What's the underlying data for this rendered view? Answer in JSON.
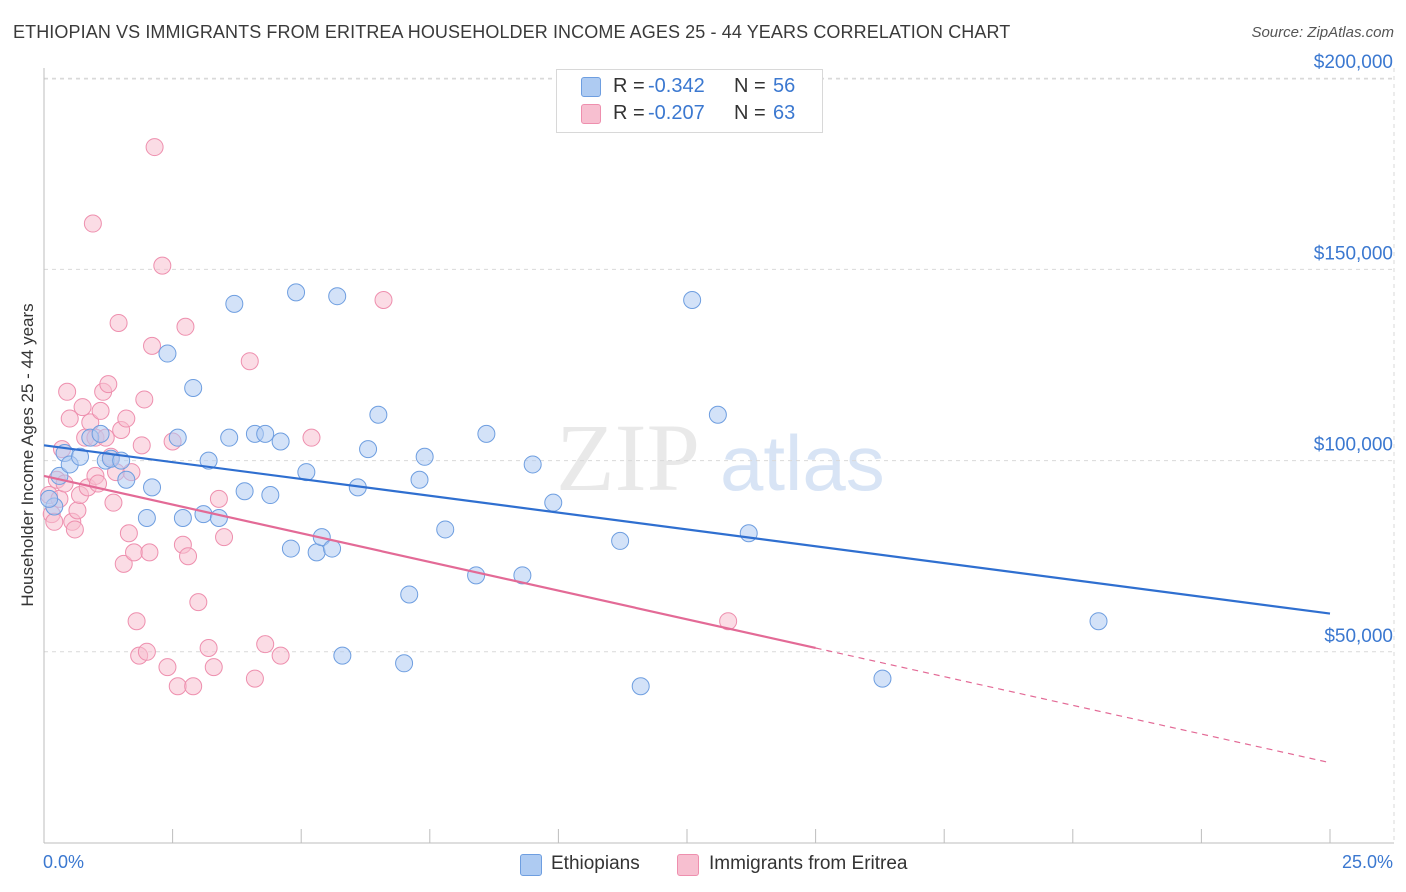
{
  "title": "ETHIOPIAN VS IMMIGRANTS FROM ERITREA HOUSEHOLDER INCOME AGES 25 - 44 YEARS CORRELATION CHART",
  "source": "Source: ZipAtlas.com",
  "watermark": {
    "zip": "ZIP",
    "atlas": "atlas"
  },
  "legend_top": {
    "rows": [
      {
        "r_label": "R =",
        "r_value": "-0.342",
        "n_label": "N =",
        "n_value": "56"
      },
      {
        "r_label": "R =",
        "r_value": "-0.207",
        "n_label": "N =",
        "n_value": "63"
      }
    ]
  },
  "legend_bottom": {
    "items": [
      "Ethiopians",
      "Immigrants from Eritrea"
    ]
  },
  "colors": {
    "blue_fill": "#aecbf2",
    "blue_stroke": "#6e9ee0",
    "blue_line": "#2f6fd0",
    "pink_fill": "#f7bfd0",
    "pink_stroke": "#ee8fae",
    "pink_line": "#e36a96",
    "tick_text": "#3b78d0",
    "grid": "#d9d9d9"
  },
  "chart_data": {
    "type": "scatter",
    "title": "ETHIOPIAN VS IMMIGRANTS FROM ERITREA HOUSEHOLDER INCOME AGES 25 - 44 YEARS CORRELATION CHART",
    "xlabel": "",
    "ylabel": "Householder Income Ages 25 - 44 years",
    "x_unit": "%",
    "xlim": [
      0,
      25
    ],
    "ylim": [
      0,
      210000
    ],
    "x_tick_labels": [
      "0.0%",
      "25.0%"
    ],
    "y_ticks": [
      50000,
      100000,
      150000,
      200000
    ],
    "y_tick_labels": [
      "$50,000",
      "$100,000",
      "$150,000",
      "$200,000"
    ],
    "grid": true,
    "legend_position": "top-center",
    "series": [
      {
        "name": "Ethiopians",
        "R": -0.342,
        "N": 56,
        "trend": {
          "x0": 0.0,
          "y0": 104000,
          "x1": 25.0,
          "y1": 60000,
          "solid_to": 25.0
        },
        "points": [
          [
            0.3,
            96000
          ],
          [
            0.4,
            102000
          ],
          [
            0.5,
            99000
          ],
          [
            0.7,
            101000
          ],
          [
            0.9,
            106000
          ],
          [
            1.1,
            107000
          ],
          [
            1.2,
            100000
          ],
          [
            1.3,
            100500
          ],
          [
            1.5,
            100000
          ],
          [
            1.6,
            95000
          ],
          [
            2.0,
            85000
          ],
          [
            2.1,
            93000
          ],
          [
            2.4,
            128000
          ],
          [
            2.6,
            106000
          ],
          [
            2.7,
            85000
          ],
          [
            2.9,
            119000
          ],
          [
            3.1,
            86000
          ],
          [
            3.2,
            100000
          ],
          [
            3.4,
            85000
          ],
          [
            3.6,
            106000
          ],
          [
            3.7,
            141000
          ],
          [
            3.9,
            92000
          ],
          [
            4.1,
            107000
          ],
          [
            4.3,
            107000
          ],
          [
            4.4,
            91000
          ],
          [
            4.6,
            105000
          ],
          [
            4.8,
            77000
          ],
          [
            4.9,
            144000
          ],
          [
            5.1,
            97000
          ],
          [
            5.3,
            76000
          ],
          [
            5.4,
            80000
          ],
          [
            5.6,
            77000
          ],
          [
            5.7,
            143000
          ],
          [
            5.8,
            49000
          ],
          [
            6.1,
            93000
          ],
          [
            6.3,
            103000
          ],
          [
            6.5,
            112000
          ],
          [
            7.0,
            47000
          ],
          [
            7.1,
            65000
          ],
          [
            7.3,
            95000
          ],
          [
            7.4,
            101000
          ],
          [
            7.8,
            82000
          ],
          [
            8.4,
            70000
          ],
          [
            8.6,
            107000
          ],
          [
            9.3,
            70000
          ],
          [
            9.5,
            99000
          ],
          [
            9.9,
            89000
          ],
          [
            11.2,
            79000
          ],
          [
            11.6,
            41000
          ],
          [
            12.6,
            142000
          ],
          [
            13.1,
            112000
          ],
          [
            13.7,
            81000
          ],
          [
            16.3,
            43000
          ],
          [
            20.5,
            58000
          ],
          [
            0.2,
            88000
          ],
          [
            0.1,
            90000
          ]
        ]
      },
      {
        "name": "Immigrants from Eritrea",
        "R": -0.207,
        "N": 63,
        "trend": {
          "x0": 0.0,
          "y0": 96000,
          "x1": 25.0,
          "y1": 21000,
          "solid_to": 15.0
        },
        "points": [
          [
            0.1,
            91000
          ],
          [
            0.15,
            86000
          ],
          [
            0.2,
            84000
          ],
          [
            0.25,
            95000
          ],
          [
            0.3,
            90000
          ],
          [
            0.35,
            103000
          ],
          [
            0.4,
            94000
          ],
          [
            0.45,
            118000
          ],
          [
            0.5,
            111000
          ],
          [
            0.55,
            84000
          ],
          [
            0.6,
            82000
          ],
          [
            0.65,
            87000
          ],
          [
            0.7,
            91000
          ],
          [
            0.75,
            114000
          ],
          [
            0.8,
            106000
          ],
          [
            0.85,
            93000
          ],
          [
            0.9,
            110000
          ],
          [
            0.95,
            162000
          ],
          [
            1.0,
            106000
          ],
          [
            1.0,
            96000
          ],
          [
            1.05,
            94000
          ],
          [
            1.1,
            113000
          ],
          [
            1.15,
            118000
          ],
          [
            1.2,
            106000
          ],
          [
            1.25,
            120000
          ],
          [
            1.3,
            101000
          ],
          [
            1.35,
            89000
          ],
          [
            1.4,
            97000
          ],
          [
            1.45,
            136000
          ],
          [
            1.5,
            108000
          ],
          [
            1.55,
            73000
          ],
          [
            1.6,
            111000
          ],
          [
            1.65,
            81000
          ],
          [
            1.7,
            97000
          ],
          [
            1.75,
            76000
          ],
          [
            1.8,
            58000
          ],
          [
            1.85,
            49000
          ],
          [
            1.9,
            104000
          ],
          [
            1.95,
            116000
          ],
          [
            2.0,
            50000
          ],
          [
            2.05,
            76000
          ],
          [
            2.1,
            130000
          ],
          [
            2.15,
            182000
          ],
          [
            2.3,
            151000
          ],
          [
            2.4,
            46000
          ],
          [
            2.5,
            105000
          ],
          [
            2.6,
            41000
          ],
          [
            2.7,
            78000
          ],
          [
            2.75,
            135000
          ],
          [
            2.8,
            75000
          ],
          [
            2.9,
            41000
          ],
          [
            3.0,
            63000
          ],
          [
            3.2,
            51000
          ],
          [
            3.3,
            46000
          ],
          [
            3.4,
            90000
          ],
          [
            3.5,
            80000
          ],
          [
            4.0,
            126000
          ],
          [
            4.1,
            43000
          ],
          [
            4.3,
            52000
          ],
          [
            4.6,
            49000
          ],
          [
            5.2,
            106000
          ],
          [
            6.6,
            142000
          ],
          [
            13.3,
            58000
          ]
        ]
      }
    ]
  }
}
